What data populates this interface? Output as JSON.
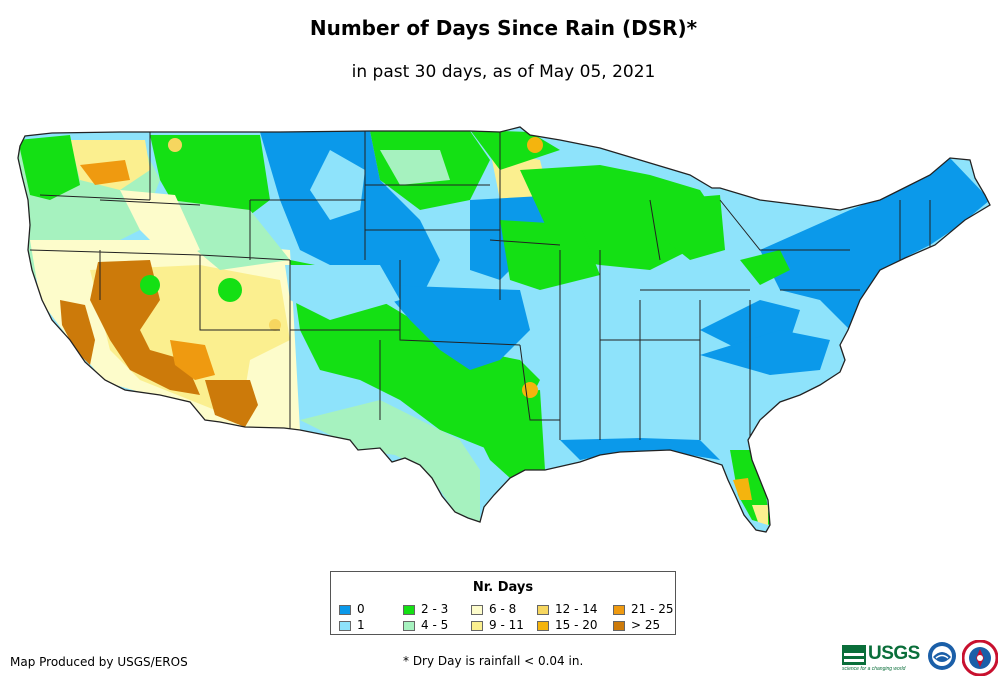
{
  "title": "Number of Days Since Rain (DSR)*",
  "subtitle": "in past 30 days, as of May 05, 2021",
  "legend": {
    "title": "Nr. Days",
    "items": [
      {
        "label": "0",
        "color": "#0b99ea"
      },
      {
        "label": "1",
        "color": "#8ee3fb"
      },
      {
        "label": "2 - 3",
        "color": "#14e014"
      },
      {
        "label": "4 - 5",
        "color": "#a6f2bf"
      },
      {
        "label": "6 - 8",
        "color": "#fdfccb"
      },
      {
        "label": "9 - 11",
        "color": "#fbef8f"
      },
      {
        "label": "12 - 14",
        "color": "#f6d65f"
      },
      {
        "label": "15 - 20",
        "color": "#f4b40e"
      },
      {
        "label": "21 - 25",
        "color": "#ef9a10"
      },
      {
        "label": "> 25",
        "color": "#cc7a0a"
      }
    ]
  },
  "footer": {
    "credit": "Map Produced by USGS/EROS",
    "footnote": "* Dry Day is rainfall < 0.04 in."
  },
  "logos": {
    "usgs": {
      "text": "USGS",
      "tagline": "science for a changing world",
      "color": "#0a6e3a"
    },
    "noaa": {
      "text": "NOAA",
      "color": "#1b5fa8"
    },
    "nws": {
      "color": "#c8102e"
    }
  }
}
